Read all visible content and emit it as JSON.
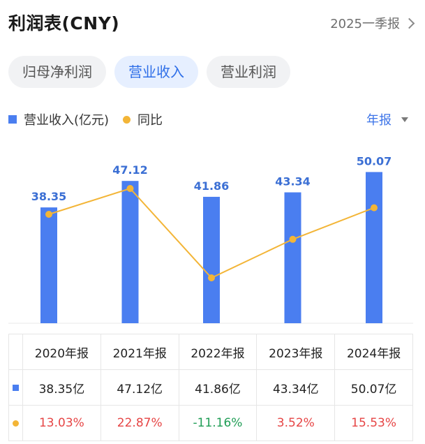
{
  "header": {
    "title": "利润表(CNY)",
    "period": "2025一季报"
  },
  "tabs": [
    {
      "label": "归母净利润",
      "active": false
    },
    {
      "label": "营业收入",
      "active": true
    },
    {
      "label": "营业利润",
      "active": false
    }
  ],
  "legend": {
    "bar_label": "营业收入(亿元)",
    "line_label": "同比"
  },
  "frequency": "年报",
  "colors": {
    "bar": "#4a7ef0",
    "line": "#f3b537",
    "positive": "#e64545",
    "negative": "#1f9d55",
    "accent": "#2f6fe8"
  },
  "chart_data": {
    "type": "bar",
    "categories": [
      "2020年报",
      "2021年报",
      "2022年报",
      "2023年报",
      "2024年报"
    ],
    "series": [
      {
        "name": "营业收入(亿元)",
        "type": "bar",
        "values": [
          38.35,
          47.12,
          41.86,
          43.34,
          50.07
        ]
      },
      {
        "name": "同比",
        "type": "line",
        "values": [
          13.03,
          22.87,
          -11.16,
          3.52,
          15.53
        ]
      }
    ],
    "data_labels": [
      "38.35",
      "47.12",
      "41.86",
      "43.34",
      "50.07"
    ]
  },
  "table": {
    "headers": [
      "2020年报",
      "2021年报",
      "2022年报",
      "2023年报",
      "2024年报"
    ],
    "revenue": [
      "38.35亿",
      "47.12亿",
      "41.86亿",
      "43.34亿",
      "50.07亿"
    ],
    "yoy": [
      "13.03%",
      "22.87%",
      "-11.16%",
      "3.52%",
      "15.53%"
    ]
  }
}
